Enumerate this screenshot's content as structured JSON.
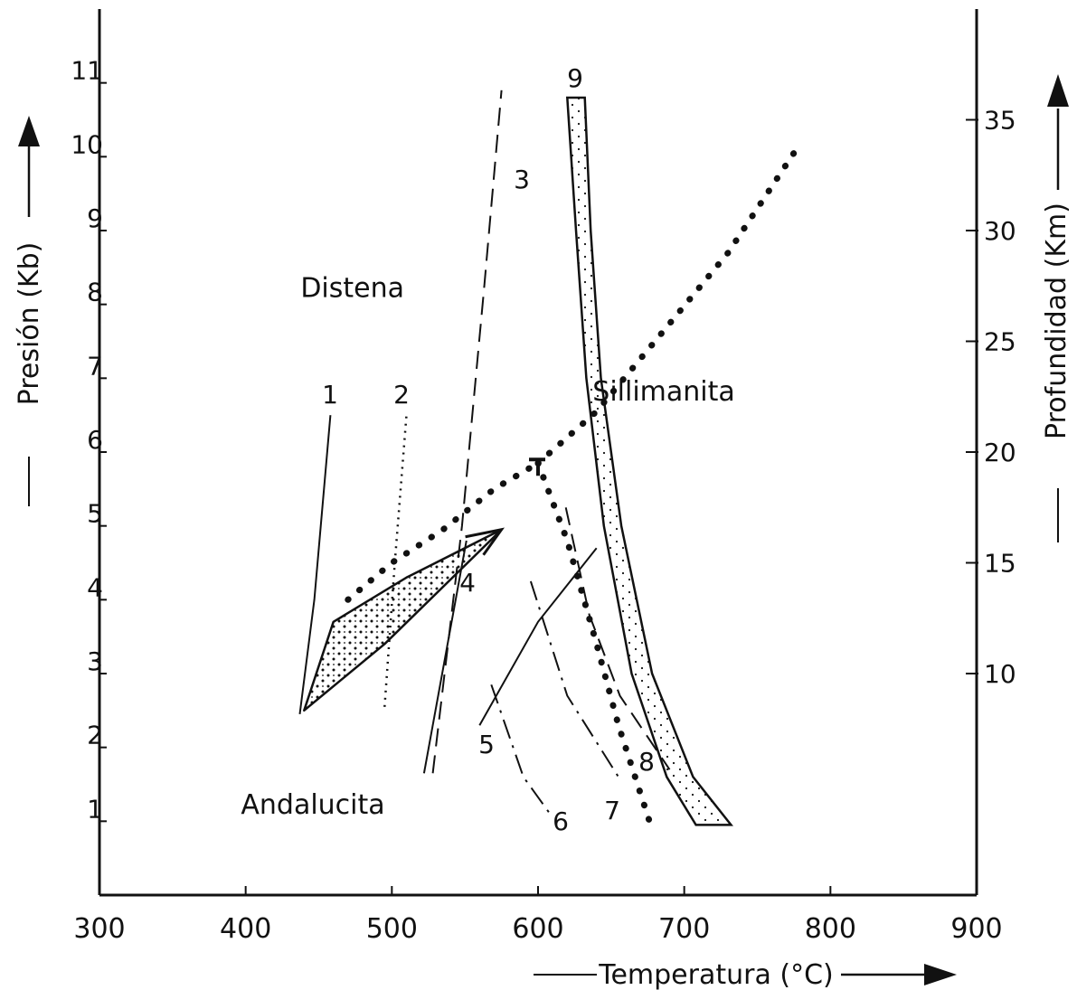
{
  "chart_data": {
    "type": "line",
    "xlabel": "Temperatura (°C)",
    "ylabel_left": "Presión (Kb)",
    "ylabel_right": "Profundidad (Km)",
    "xlim": [
      300,
      900
    ],
    "ylim": [
      0,
      12
    ],
    "x_ticks": [
      "300",
      "400",
      "500",
      "600",
      "700",
      "800",
      "900"
    ],
    "y_ticks": [
      {
        "v": 1,
        "label": "1"
      },
      {
        "v": 2,
        "label": "2"
      },
      {
        "v": 3,
        "label": "3"
      },
      {
        "v": 4,
        "label": "4"
      },
      {
        "v": 5,
        "label": "5"
      },
      {
        "v": 6,
        "label": "6"
      },
      {
        "v": 7,
        "label": "7"
      },
      {
        "v": 8,
        "label": "8"
      },
      {
        "v": 9,
        "label": "9"
      },
      {
        "v": 10,
        "label": "10"
      },
      {
        "v": 11,
        "label": "11"
      }
    ],
    "right_ticks": [
      {
        "km": 10,
        "label": "10"
      },
      {
        "km": 15,
        "label": "15"
      },
      {
        "km": 20,
        "label": "20"
      },
      {
        "km": 25,
        "label": "25"
      },
      {
        "km": 30,
        "label": "30"
      },
      {
        "km": 35,
        "label": "35"
      }
    ],
    "fields": [
      {
        "name": "Distena",
        "x": 473,
        "y": 8.1
      },
      {
        "name": "Sillimanita",
        "x": 686,
        "y": 6.7
      },
      {
        "name": "Andalucita",
        "x": 446,
        "y": 1.1
      }
    ],
    "triple_point": {
      "x": 600,
      "y": 5.85
    },
    "aluminosilicate_boundaries": [
      {
        "name": "Distena-Andalucita",
        "points": [
          [
            470,
            4.0
          ],
          [
            500,
            4.5
          ],
          [
            535,
            4.95
          ],
          [
            570,
            5.5
          ],
          [
            600,
            5.85
          ]
        ]
      },
      {
        "name": "Distena-Sillimanita",
        "points": [
          [
            600,
            5.85
          ],
          [
            640,
            6.55
          ],
          [
            680,
            7.5
          ],
          [
            730,
            8.7
          ],
          [
            780,
            10.2
          ]
        ]
      },
      {
        "name": "Andalucita-Sillimanita",
        "points": [
          [
            600,
            5.85
          ],
          [
            620,
            4.8
          ],
          [
            640,
            3.4
          ],
          [
            655,
            2.3
          ],
          [
            677,
            0.95
          ]
        ]
      }
    ],
    "reaction_curves": [
      {
        "label": "1",
        "style": "solid",
        "points": [
          [
            437,
            2.45
          ],
          [
            447,
            4.0
          ],
          [
            458,
            6.5
          ]
        ]
      },
      {
        "label": "2",
        "style": "dotted",
        "points": [
          [
            495,
            2.55
          ],
          [
            502,
            4.5
          ],
          [
            510,
            6.5
          ]
        ]
      },
      {
        "label": "3",
        "style": "dashed",
        "points": [
          [
            528,
            1.65
          ],
          [
            548,
            5.0
          ],
          [
            563,
            8.2
          ],
          [
            575,
            10.9
          ]
        ]
      },
      {
        "label": "4",
        "style": "solid",
        "points": [
          [
            522,
            1.65
          ],
          [
            551,
            4.8
          ]
        ]
      },
      {
        "label": "5",
        "style": "solid",
        "points": [
          [
            560,
            2.3
          ],
          [
            600,
            3.7
          ],
          [
            640,
            4.7
          ]
        ]
      },
      {
        "label": "6",
        "style": "dash-dot",
        "points": [
          [
            568,
            2.85
          ],
          [
            590,
            1.6
          ],
          [
            610,
            1.05
          ]
        ]
      },
      {
        "label": "7",
        "style": "dash-dot",
        "points": [
          [
            595,
            4.25
          ],
          [
            620,
            2.7
          ],
          [
            655,
            1.6
          ]
        ]
      },
      {
        "label": "8",
        "style": "dashed",
        "points": [
          [
            619,
            5.25
          ],
          [
            635,
            3.8
          ],
          [
            656,
            2.7
          ],
          [
            690,
            1.7
          ]
        ]
      }
    ],
    "band_9": {
      "label": "9",
      "left": [
        [
          620,
          10.8
        ],
        [
          626,
          9.0
        ],
        [
          633,
          7.0
        ],
        [
          645,
          5.0
        ],
        [
          664,
          3.0
        ],
        [
          688,
          1.6
        ],
        [
          708,
          0.95
        ]
      ],
      "right": [
        [
          632,
          10.8
        ],
        [
          636,
          9.0
        ],
        [
          643,
          7.0
        ],
        [
          657,
          5.0
        ],
        [
          678,
          3.0
        ],
        [
          706,
          1.6
        ],
        [
          732,
          0.95
        ]
      ]
    },
    "pt_path": {
      "upper": [
        [
          460,
          3.7
        ],
        [
          510,
          4.3
        ],
        [
          575,
          4.95
        ]
      ],
      "lower": [
        [
          440,
          2.5
        ],
        [
          495,
          3.4
        ],
        [
          575,
          4.95
        ]
      ]
    }
  }
}
